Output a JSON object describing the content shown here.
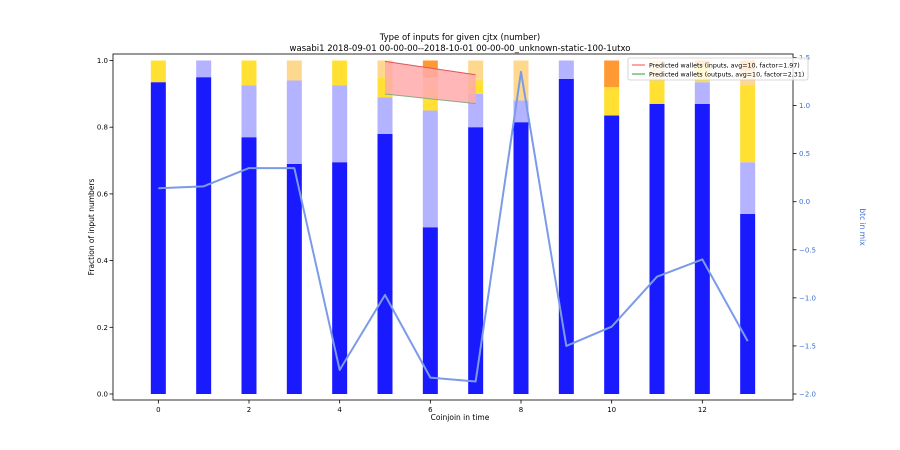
{
  "chart_data": {
    "type": "bar",
    "title": "Type of inputs for given cjtx (number)",
    "subtitle": "wasabi1 2018-09-01 00-00-00--2018-10-01 00-00-00_unknown-static-100-1utxo",
    "xlabel": "Coinjoin in time",
    "ylabel": "Fraction of input numbers",
    "y2label": "btc in mix",
    "xlim": [
      -1,
      14
    ],
    "ylim": [
      0,
      1
    ],
    "y2lim": [
      -2.0,
      1.5
    ],
    "xticks": [
      "0",
      "2",
      "4",
      "6",
      "8",
      "10",
      "12"
    ],
    "yticks": [
      "0.0",
      "0.2",
      "0.4",
      "0.6",
      "0.8",
      "1.0"
    ],
    "y2ticks": [
      "−2.0",
      "−1.5",
      "−1.0",
      "−0.5",
      "0.0",
      "0.5",
      "1.0",
      "1.5"
    ],
    "categories": [
      0,
      1,
      2,
      3,
      4,
      5,
      6,
      7,
      8,
      9,
      10,
      11,
      12,
      13
    ],
    "series": [
      {
        "color": "#1a1aff",
        "values": [
          0.935,
          0.95,
          0.77,
          0.69,
          0.695,
          0.78,
          0.5,
          0.8,
          0.815,
          0.945,
          0.835,
          0.87,
          0.87,
          0.54
        ]
      },
      {
        "color": "#b3b3ff",
        "values": [
          0.0,
          0.05,
          0.155,
          0.25,
          0.23,
          0.11,
          0.35,
          0.1,
          0.065,
          0.055,
          0.0,
          0.0,
          0.065,
          0.155
        ]
      },
      {
        "color": "#ffe033",
        "values": [
          0.065,
          0.0,
          0.075,
          0.0,
          0.075,
          0.06,
          0.05,
          0.04,
          0.0,
          0.0,
          0.085,
          0.07,
          0.05,
          0.23
        ]
      },
      {
        "color": "#ffd88f",
        "values": [
          0.0,
          0.0,
          0.0,
          0.06,
          0.0,
          0.05,
          0.05,
          0.06,
          0.12,
          0.0,
          0.0,
          0.06,
          0.0,
          0.045
        ]
      },
      {
        "color": "#ff9933",
        "values": [
          0.0,
          0.0,
          0.0,
          0.0,
          0.0,
          0.0,
          0.05,
          0.0,
          0.0,
          0.0,
          0.08,
          0.0,
          0.015,
          0.03
        ]
      }
    ],
    "line": {
      "color": "#7b9be8",
      "axis": "y2",
      "x": [
        0,
        1,
        2,
        3,
        4,
        5,
        6,
        7,
        8,
        9,
        10,
        11,
        12,
        13
      ],
      "y": [
        0.14,
        0.16,
        0.35,
        0.35,
        -1.75,
        -0.97,
        -1.83,
        -1.87,
        1.35,
        -1.5,
        -1.3,
        -0.78,
        -0.6,
        -1.45
      ]
    },
    "band": {
      "axis": "y2",
      "x": [
        5,
        7
      ],
      "upper": [
        1.46,
        1.32
      ],
      "lower": [
        1.12,
        1.02
      ],
      "fill": "#ffaaaa",
      "stroke_upper": "#e05555",
      "stroke_lower": "#88aa88"
    },
    "legend": {
      "placement": "top-right",
      "entries": [
        {
          "label": "Predicted wallets (inputs, avg=10, factor=1.97)",
          "color": "#ff6666"
        },
        {
          "label": "Predicted wallets (outputs, avg=10, factor=2.31)",
          "color": "#55aa55"
        }
      ]
    },
    "grid": false
  }
}
